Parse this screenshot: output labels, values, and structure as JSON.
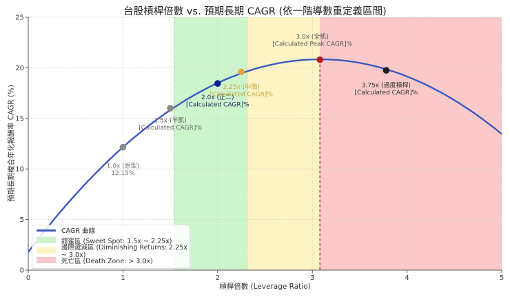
{
  "chart_data": {
    "type": "line",
    "title": "台股槓桿倍數 vs. 預期長期 CAGR (依一階導數重定義區間)",
    "xlabel": "槓桿倍數 (Leverage Ratio)",
    "ylabel": "預期長期複合年化報酬率 CAGR (%)",
    "xlim": [
      0,
      5
    ],
    "ylim": [
      0,
      25
    ],
    "xticks": [
      0,
      1,
      2,
      3,
      4,
      5
    ],
    "yticks": [
      0,
      5,
      10,
      15,
      20,
      25
    ],
    "grid": true,
    "series": [
      {
        "name": "CAGR 曲線",
        "color": "#3b5bbf",
        "model": "1.8 + 12.36*L - 2.006*L^2",
        "x": [
          0,
          0.25,
          0.5,
          0.75,
          1.0,
          1.25,
          1.5,
          1.75,
          2.0,
          2.25,
          2.5,
          2.75,
          3.0,
          3.08,
          3.25,
          3.5,
          3.75,
          4.0,
          4.25,
          4.5,
          4.75,
          5.0
        ],
        "values": [
          1.8,
          4.76,
          7.48,
          9.94,
          12.15,
          14.12,
          15.83,
          17.28,
          18.5,
          19.46,
          20.17,
          20.63,
          20.83,
          20.84,
          20.82,
          20.5,
          19.94,
          19.14,
          18.1,
          16.8,
          15.25,
          13.45
        ]
      }
    ],
    "zones": [
      {
        "name": "甜蜜區 (Sweet Spot: 1.5x ~ 2.25x)",
        "x_start": 1.54,
        "x_end": 2.31,
        "color": "#cdf5cc",
        "edge": "#6fbf6a"
      },
      {
        "name": "邊際遞減區 (Diminishing Returns: 2.25x ~ 3.0x)",
        "x_start": 2.31,
        "x_end": 3.08,
        "color": "#fdf3c4",
        "edge": null
      },
      {
        "name": "死亡區 (Death Zone: > 3.0x)",
        "x_start": 3.08,
        "x_end": 5.0,
        "color": "#fbc9c9",
        "edge": "#b03030"
      }
    ],
    "markers": [
      {
        "x": 1.0,
        "y": 12.15,
        "color": "#8a8a8a",
        "label1": "1.0x (原型)",
        "label2": "12.15%",
        "label_color": "#777777",
        "lx": 1.0,
        "ly": 10.1
      },
      {
        "x": 1.5,
        "y": 16.0,
        "color": "#8a8a8a",
        "label1": "1.5x (半凱)",
        "label2": "[Calculated CAGR]%",
        "label_color": "#666666",
        "lx": 1.5,
        "ly": 14.6
      },
      {
        "x": 2.0,
        "y": 18.45,
        "color": "#0a1f8f",
        "label1": "2.0x (正二)",
        "label2": "[Calculated CAGR]%",
        "label_color": "#222266",
        "lx": 2.0,
        "ly": 16.9
      },
      {
        "x": 2.25,
        "y": 19.6,
        "color": "#e6a23c",
        "label1": "2.25x (中間)",
        "label2": "[Calculated CAGR]%",
        "label_color": "#c9a645",
        "lx": 2.25,
        "ly": 17.9
      },
      {
        "x": 3.08,
        "y": 20.8,
        "color": "#b01e1e",
        "label1": "3.0x (全凱)",
        "label2": "[Calculated Peak CAGR]%",
        "label_color": "#555555",
        "lx": 3.0,
        "ly": 22.9
      },
      {
        "x": 3.78,
        "y": 19.75,
        "color": "#222222",
        "label1": "3.75x (過度槓桿)",
        "label2": "[Calculated CAGR]%",
        "label_color": "#333333",
        "lx": 3.78,
        "ly": 18.1
      }
    ],
    "peak_line_x": 3.08,
    "legend_position": "lower left"
  },
  "legend": {
    "items": [
      {
        "label": "CAGR 曲線",
        "kind": "line",
        "color": "#3b5bbf"
      },
      {
        "label": "甜蜜區 (Sweet Spot: 1.5x ~ 2.25x)",
        "kind": "patch",
        "color": "#cdf5cc"
      },
      {
        "label": "邊際遞減區 (Diminishing Returns: 2.25x ~ 3.0x)",
        "kind": "patch",
        "color": "#fdf3c4"
      },
      {
        "label": "死亡區 (Death Zone: > 3.0x)",
        "kind": "patch",
        "color": "#fbc9c9"
      }
    ]
  }
}
